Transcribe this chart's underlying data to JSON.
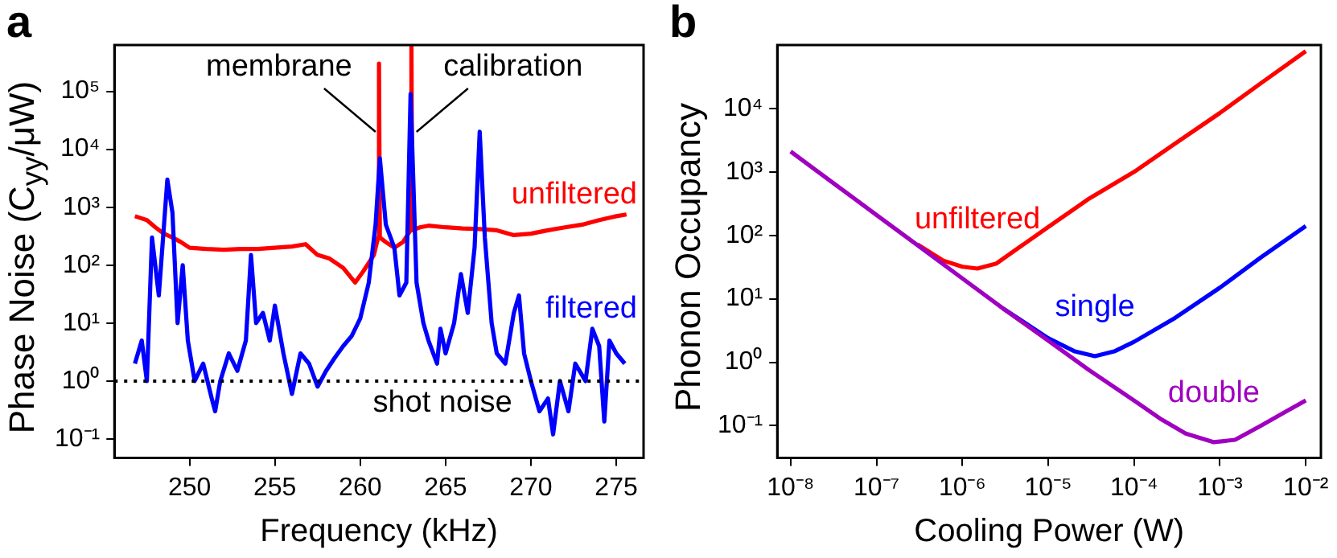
{
  "chart_data": [
    {
      "type": "line",
      "title": "a",
      "xlabel": "Frequency (kHz)",
      "ylabel": "Phase Noise (C$_{yy}$/μW)",
      "log": "y",
      "grid": false,
      "legend": false,
      "xlim": [
        245.6,
        276.6
      ],
      "ylim": [
        0.047,
        630000
      ],
      "xticks": [
        250,
        255,
        260,
        265,
        270,
        275
      ],
      "yticks": [
        {
          "value": 0.1,
          "label": "10⁻¹"
        },
        {
          "value": 1,
          "label": "10⁰"
        },
        {
          "value": 10,
          "label": "10¹"
        },
        {
          "value": 100,
          "label": "10²"
        },
        {
          "value": 1000,
          "label": "10³"
        },
        {
          "value": 10000,
          "label": "10⁴"
        },
        {
          "value": 100000,
          "label": "10⁵"
        }
      ],
      "ref_lines": [
        {
          "axis": "y",
          "value": 1,
          "label": "shot noise",
          "color": "#000000",
          "line_style": "dotted"
        }
      ],
      "annotations": [
        {
          "text": "membrane",
          "x": 260.9,
          "y": 20000
        },
        {
          "text": "calibration",
          "x": 263.3,
          "y": 20000
        }
      ],
      "series": [
        {
          "name": "unfiltered",
          "color": "#ff0000",
          "x": [
            246.8,
            247.5,
            248,
            248.5,
            249,
            249.5,
            250,
            251,
            252,
            253,
            254,
            255,
            256,
            256.8,
            257.5,
            258.2,
            259,
            259.7,
            260.2,
            260.8,
            261.05,
            261.1,
            261.15,
            261.5,
            262,
            262.5,
            262.95,
            263,
            263.05,
            263.5,
            264,
            265,
            266,
            267,
            268,
            269,
            270,
            271,
            272,
            273,
            274,
            275,
            275.6
          ],
          "values": [
            700,
            600,
            450,
            350,
            300,
            250,
            200,
            190,
            185,
            190,
            190,
            200,
            210,
            230,
            150,
            130,
            90,
            50,
            80,
            150,
            300,
            300000,
            300,
            250,
            200,
            250,
            400,
            600000,
            400,
            450,
            480,
            450,
            430,
            420,
            400,
            330,
            350,
            400,
            450,
            500,
            600,
            700,
            750
          ]
        },
        {
          "name": "filtered",
          "color": "#0000ff",
          "x": [
            246.8,
            247.2,
            247.5,
            247.8,
            248.2,
            248.7,
            249,
            249.3,
            249.6,
            249.9,
            250.3,
            250.8,
            251.3,
            251.5,
            251.8,
            252.3,
            252.8,
            253.3,
            253.6,
            253.9,
            254.3,
            254.7,
            255,
            255.5,
            256,
            256.5,
            257,
            257.5,
            258,
            258.5,
            259,
            259.5,
            260,
            260.5,
            260.9,
            261.15,
            261.5,
            262,
            262.3,
            262.7,
            262.95,
            263.3,
            263.7,
            264,
            264.5,
            264.7,
            265,
            265.5,
            265.9,
            266.3,
            266.7,
            267,
            267.3,
            267.7,
            268,
            268.5,
            269,
            269.3,
            269.6,
            270,
            270.5,
            271,
            271.3,
            271.7,
            272.2,
            272.6,
            273.2,
            273.6,
            274,
            274.3,
            274.6,
            275,
            275.5
          ],
          "values": [
            2,
            5,
            1,
            300,
            30,
            3000,
            800,
            10,
            100,
            5,
            1,
            2,
            0.5,
            0.3,
            1,
            3,
            1.5,
            5,
            150,
            10,
            15,
            5,
            20,
            3,
            0.6,
            3,
            2,
            0.8,
            1.5,
            2.5,
            4,
            6,
            12,
            50,
            500,
            7000,
            500,
            200,
            30,
            50,
            90000,
            50,
            10,
            5,
            2,
            8,
            3,
            10,
            70,
            15,
            200,
            20000,
            300,
            10,
            3,
            2,
            15,
            30,
            3,
            1,
            0.3,
            0.5,
            0.12,
            1,
            0.3,
            2,
            1,
            8,
            4,
            0.2,
            5,
            3,
            2
          ]
        }
      ]
    },
    {
      "type": "line",
      "title": "b",
      "xlabel": "Cooling Power (W)",
      "ylabel": "Phonon Occupancy",
      "log": "xy",
      "grid": false,
      "legend": false,
      "xlim": [
        7e-09,
        0.015
      ],
      "ylim": [
        0.031,
        100000
      ],
      "xticks": [
        {
          "value": 1e-08,
          "label": "10⁻⁸"
        },
        {
          "value": 1e-07,
          "label": "10⁻⁷"
        },
        {
          "value": 1e-06,
          "label": "10⁻⁶"
        },
        {
          "value": 1e-05,
          "label": "10⁻⁵"
        },
        {
          "value": 0.0001,
          "label": "10⁻⁴"
        },
        {
          "value": 0.001,
          "label": "10⁻³"
        },
        {
          "value": 0.01,
          "label": "10⁻²"
        }
      ],
      "yticks": [
        {
          "value": 0.1,
          "label": "10⁻¹"
        },
        {
          "value": 1,
          "label": "10⁰"
        },
        {
          "value": 10,
          "label": "10¹"
        },
        {
          "value": 100,
          "label": "10²"
        },
        {
          "value": 1000,
          "label": "10³"
        },
        {
          "value": 10000,
          "label": "10⁴"
        }
      ],
      "series": [
        {
          "name": "unfiltered",
          "color": "#ff0000",
          "x": [
            3e-07,
            6e-07,
            1e-06,
            1.5e-06,
            2.5e-06,
            5e-06,
            1e-05,
            3e-05,
            0.0001,
            0.0003,
            0.001,
            0.003,
            0.01
          ],
          "values": [
            72,
            40,
            32,
            30,
            36,
            70,
            135,
            380,
            1000,
            2800,
            8500,
            25000,
            80000
          ]
        },
        {
          "name": "single",
          "color": "#0000ff",
          "x": [
            3e-06,
            1e-05,
            2e-05,
            3.5e-05,
            6e-05,
            0.0001,
            0.0003,
            0.001,
            0.003,
            0.01
          ],
          "values": [
            7,
            2.4,
            1.5,
            1.25,
            1.5,
            2.1,
            5,
            15,
            45,
            140
          ]
        },
        {
          "name": "double",
          "color": "#a000c0",
          "x": [
            1e-08,
            3e-08,
            1e-07,
            3e-07,
            1e-06,
            3e-06,
            1e-05,
            3e-05,
            0.0001,
            0.0002,
            0.0004,
            0.00085,
            0.0015,
            0.003,
            0.006,
            0.01
          ],
          "values": [
            2100,
            700,
            210,
            70,
            21,
            7,
            2.2,
            0.75,
            0.25,
            0.13,
            0.075,
            0.055,
            0.06,
            0.1,
            0.17,
            0.25
          ]
        }
      ]
    }
  ]
}
